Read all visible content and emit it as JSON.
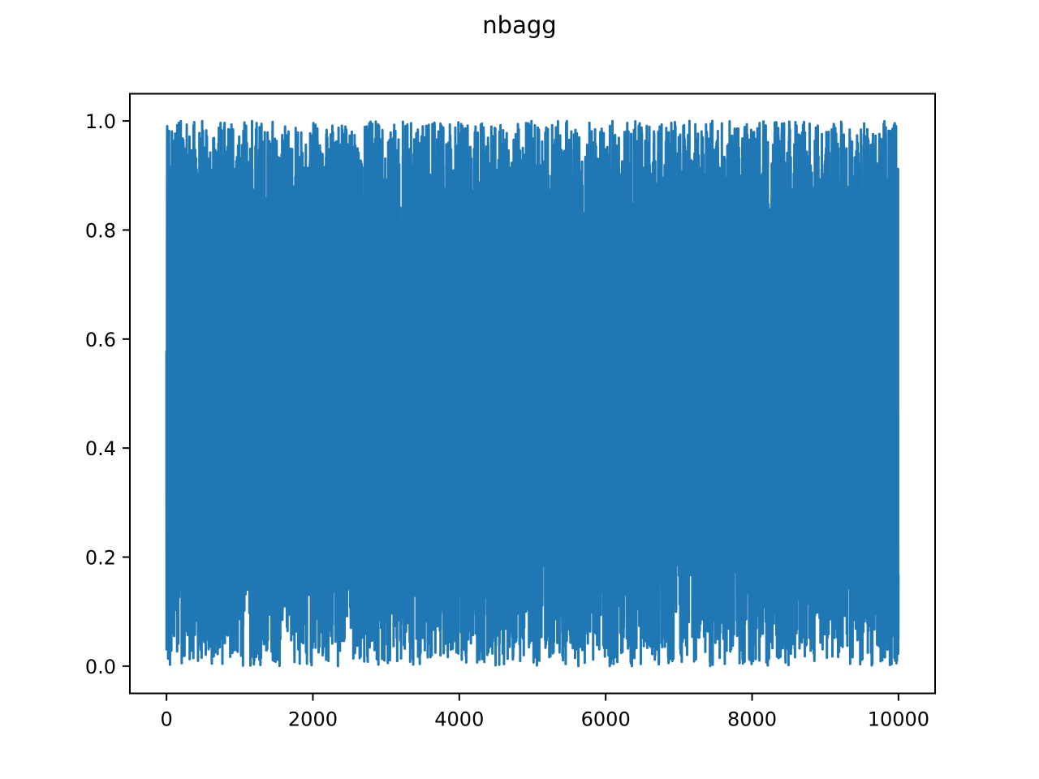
{
  "chart_data": {
    "type": "line",
    "title": "nbagg",
    "xlabel": "",
    "ylabel": "",
    "xlim": [
      -500,
      10500
    ],
    "ylim": [
      -0.05,
      1.05
    ],
    "grid": false,
    "legend": null,
    "x_ticks": [
      0,
      2000,
      4000,
      6000,
      8000,
      10000
    ],
    "x_tick_labels": [
      "0",
      "2000",
      "4000",
      "6000",
      "8000",
      "10000"
    ],
    "y_ticks": [
      0.0,
      0.2,
      0.4,
      0.6,
      0.8,
      1.0
    ],
    "y_tick_labels": [
      "0.0",
      "0.2",
      "0.4",
      "0.6",
      "0.8",
      "1.0"
    ],
    "series": [
      {
        "color": "#1f77b4",
        "description": "10000 uniformly distributed random values in [0, 1], plotted as a single line",
        "x_range": [
          0,
          9999
        ],
        "n_points": 10000,
        "y_min": 0.0,
        "y_max": 1.0
      }
    ]
  }
}
